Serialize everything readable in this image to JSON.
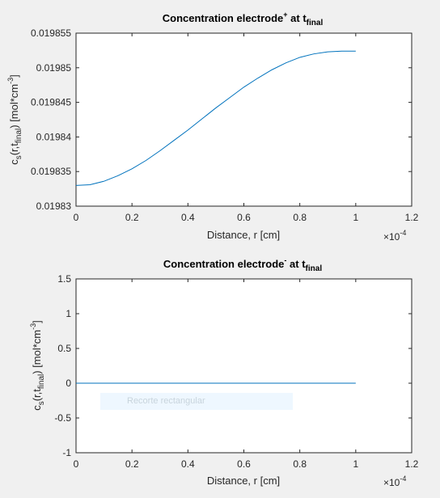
{
  "chart_data": [
    {
      "type": "line",
      "title": "Concentration electrode⁺ at t_final",
      "title_parts": {
        "main": "Concentration electrode",
        "sup": "+",
        "mid": " at t",
        "sub": "final"
      },
      "xlabel": "Distance, r [cm]",
      "ylabel": "c_s(r,t_final) [mol*cm^-3]",
      "ylabel_parts": {
        "c": "c",
        "s": "s",
        "open": "(r,t",
        "final": "final",
        "close": ") [mol*cm",
        "exp": "-3",
        "end": "]"
      },
      "x_multiplier": "×10⁻⁴",
      "x_multiplier_parts": {
        "base": "×10",
        "exp": "-4"
      },
      "xlim": [
        0,
        1.2
      ],
      "ylim": [
        0.01983,
        0.019855
      ],
      "xticks": [
        "0",
        "0.2",
        "0.4",
        "0.6",
        "0.8",
        "1",
        "1.2"
      ],
      "yticks": [
        "0.01983",
        "0.019835",
        "0.01984",
        "0.019845",
        "0.01985",
        "0.019855"
      ],
      "grid": false,
      "line_color": "#0072bd",
      "series": [
        {
          "x": [
            0,
            0.05,
            0.1,
            0.15,
            0.2,
            0.25,
            0.3,
            0.35,
            0.4,
            0.45,
            0.5,
            0.55,
            0.6,
            0.65,
            0.7,
            0.75,
            0.8,
            0.85,
            0.9,
            0.95,
            1.0
          ],
          "values": [
            0.019833,
            0.0198331,
            0.0198336,
            0.0198344,
            0.0198354,
            0.0198366,
            0.019838,
            0.0198395,
            0.019841,
            0.0198426,
            0.0198442,
            0.0198457,
            0.0198472,
            0.0198485,
            0.0198497,
            0.0198507,
            0.0198515,
            0.019852,
            0.0198523,
            0.0198524,
            0.0198524
          ]
        }
      ]
    },
    {
      "type": "line",
      "title": "Concentration electrode⁻ at t_final",
      "title_parts": {
        "main": "Concentration electrode",
        "sup": "-",
        "mid": " at t",
        "sub": "final"
      },
      "xlabel": "Distance, r [cm]",
      "ylabel": "c_s(r,t_final) [mol*cm^-3]",
      "ylabel_parts": {
        "c": "c",
        "s": "s",
        "open": "(r,t",
        "final": "final",
        "close": ") [mol*cm",
        "exp": "-3",
        "end": "]"
      },
      "x_multiplier": "×10⁻⁴",
      "x_multiplier_parts": {
        "base": "×10",
        "exp": "-4"
      },
      "xlim": [
        0,
        1.2
      ],
      "ylim": [
        -1,
        1.5
      ],
      "xticks": [
        "0",
        "0.2",
        "0.4",
        "0.6",
        "0.8",
        "1",
        "1.2"
      ],
      "yticks": [
        "-1",
        "-0.5",
        "0",
        "0.5",
        "1",
        "1.5"
      ],
      "grid": false,
      "line_color": "#0072bd",
      "series": [
        {
          "x": [
            0,
            1.0
          ],
          "values": [
            0,
            0
          ]
        }
      ]
    }
  ],
  "overlay": {
    "label": "Recorte rectangular"
  }
}
